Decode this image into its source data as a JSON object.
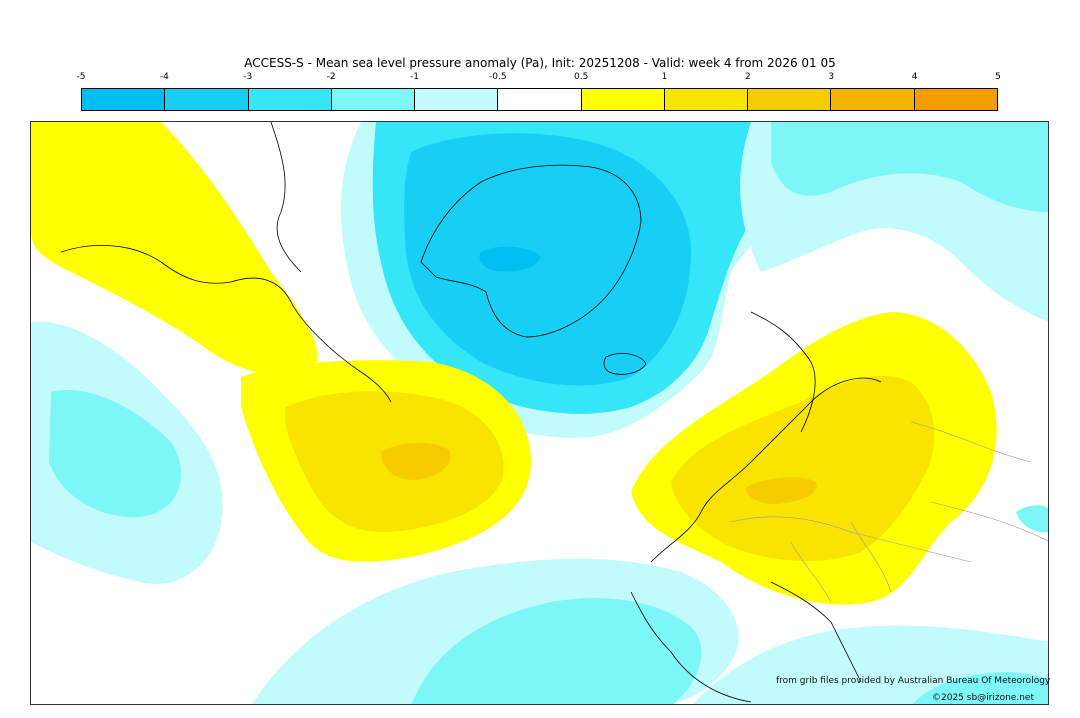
{
  "title": "ACCESS-S - Mean sea level pressure anomaly (Pa), Init: 20251208 - Valid: week 4 from 2026 01 05",
  "legend": {
    "ticks": [
      "-5",
      "-4",
      "-3",
      "-2",
      "-1",
      "-0.5",
      "0.5",
      "1",
      "2",
      "3",
      "4",
      "5"
    ],
    "colors": [
      "#00bff2",
      "#17cff5",
      "#35e5f8",
      "#7df6f8",
      "#c2fbfb",
      "#ffffff",
      "#ffff00",
      "#f9e400",
      "#f5cc00",
      "#f4b400",
      "#f59c00"
    ]
  },
  "palette": {
    "coast": "#000000",
    "border": "#9a9a9a",
    "frame": "#333333"
  },
  "credits": {
    "source": "from grib files provided by Australian Bureau Of Meteorology",
    "copyright": "©2025 sb@irizone.net"
  }
}
